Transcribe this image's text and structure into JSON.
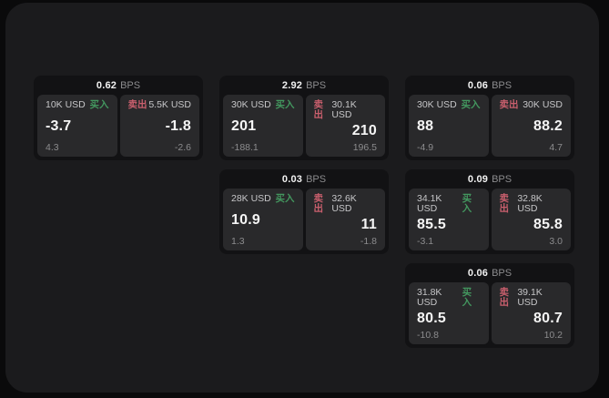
{
  "labels": {
    "bps_unit": "BPS",
    "buy": "买入",
    "sell": "卖出"
  },
  "colors": {
    "board_background": "#1b1b1d",
    "page_background": "#0a0a0b",
    "card_background": "#121214",
    "quote_background": "#29292b",
    "buy_green": "#43975f",
    "sell_red": "#c95f6d",
    "primary_text": "#f5f5f5",
    "secondary_text": "#8c8c8e"
  },
  "cards": [
    {
      "row": 1,
      "col": 1,
      "bps": "0.62",
      "buy": {
        "amount": "10K USD",
        "price": "-3.7",
        "delta": "4.3"
      },
      "sell": {
        "amount": "5.5K USD",
        "price": "-1.8",
        "delta": "-2.6"
      }
    },
    {
      "row": 1,
      "col": 2,
      "bps": "2.92",
      "buy": {
        "amount": "30K USD",
        "price": "201",
        "delta": "-188.1"
      },
      "sell": {
        "amount": "30.1K USD",
        "price": "210",
        "delta": "196.5"
      }
    },
    {
      "row": 1,
      "col": 3,
      "bps": "0.06",
      "buy": {
        "amount": "30K USD",
        "price": "88",
        "delta": "-4.9"
      },
      "sell": {
        "amount": "30K USD",
        "price": "88.2",
        "delta": "4.7"
      }
    },
    {
      "row": 2,
      "col": 2,
      "bps": "0.03",
      "buy": {
        "amount": "28K USD",
        "price": "10.9",
        "delta": "1.3"
      },
      "sell": {
        "amount": "32.6K USD",
        "price": "11",
        "delta": "-1.8"
      }
    },
    {
      "row": 2,
      "col": 3,
      "bps": "0.09",
      "buy": {
        "amount": "34.1K USD",
        "price": "85.5",
        "delta": "-3.1"
      },
      "sell": {
        "amount": "32.8K USD",
        "price": "85.8",
        "delta": "3.0"
      }
    },
    {
      "row": 3,
      "col": 3,
      "bps": "0.06",
      "buy": {
        "amount": "31.8K USD",
        "price": "80.5",
        "delta": "-10.8"
      },
      "sell": {
        "amount": "39.1K USD",
        "price": "80.7",
        "delta": "10.2"
      }
    }
  ]
}
